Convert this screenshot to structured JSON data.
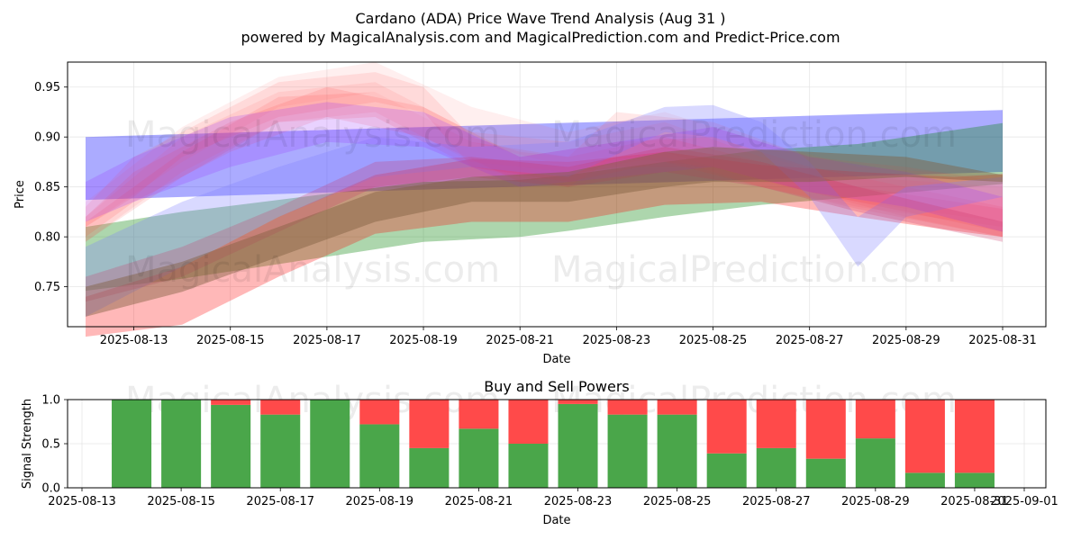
{
  "chart_data": [
    {
      "type": "area",
      "title": "Cardano (ADA) Price Wave Trend Analysis (Aug 31 )",
      "subtitle": "powered by MagicalAnalysis.com and MagicalPrediction.com and Predict-Price.com",
      "xlabel": "Date",
      "ylabel": "Price",
      "xlim": [
        "2025-08-12",
        "2025-08-31"
      ],
      "ylim": [
        0.71,
        0.975
      ],
      "x_ticks": [
        "2025-08-13",
        "2025-08-15",
        "2025-08-17",
        "2025-08-19",
        "2025-08-21",
        "2025-08-23",
        "2025-08-25",
        "2025-08-27",
        "2025-08-29",
        "2025-08-31"
      ],
      "y_ticks": [
        "0.75",
        "0.80",
        "0.85",
        "0.90",
        "0.95"
      ],
      "grid": true,
      "watermark": [
        "MagicalAnalysis.com",
        "MagicalPrediction.com"
      ],
      "bands": [
        {
          "color": "#0000ff",
          "opacity": 0.33,
          "x": [
            "2025-08-12",
            "2025-08-31"
          ],
          "upper": [
            0.9,
            0.927
          ],
          "lower": [
            0.837,
            0.865
          ]
        },
        {
          "color": "#008000",
          "opacity": 0.32,
          "x": [
            "2025-08-12",
            "2025-08-14",
            "2025-08-17",
            "2025-08-19",
            "2025-08-21",
            "2025-08-22",
            "2025-08-24",
            "2025-08-26",
            "2025-08-28",
            "2025-08-31"
          ],
          "upper": [
            0.81,
            0.825,
            0.843,
            0.855,
            0.857,
            0.862,
            0.875,
            0.887,
            0.893,
            0.914
          ],
          "lower": [
            0.746,
            0.758,
            0.78,
            0.795,
            0.8,
            0.806,
            0.82,
            0.832,
            0.84,
            0.853
          ]
        },
        {
          "color": "#ff0000",
          "opacity": 0.28,
          "x": [
            "2025-08-12",
            "2025-08-14",
            "2025-08-16",
            "2025-08-18",
            "2025-08-20",
            "2025-08-22",
            "2025-08-24",
            "2025-08-26",
            "2025-08-28",
            "2025-08-30",
            "2025-08-31"
          ],
          "upper": [
            0.74,
            0.77,
            0.82,
            0.862,
            0.878,
            0.875,
            0.885,
            0.872,
            0.865,
            0.86,
            0.863
          ],
          "lower": [
            0.7,
            0.712,
            0.76,
            0.803,
            0.815,
            0.815,
            0.832,
            0.835,
            0.82,
            0.806,
            0.8
          ]
        },
        {
          "color": "#ff5050",
          "opacity": 0.13,
          "x": [
            "2025-08-12",
            "2025-08-13",
            "2025-08-14",
            "2025-08-16",
            "2025-08-18",
            "2025-08-19",
            "2025-08-20",
            "2025-08-21",
            "2025-08-22",
            "2025-08-23",
            "2025-08-25",
            "2025-08-27",
            "2025-08-29",
            "2025-08-31"
          ],
          "upper": [
            0.83,
            0.88,
            0.905,
            0.955,
            0.965,
            0.95,
            0.9,
            0.885,
            0.88,
            0.925,
            0.915,
            0.88,
            0.87,
            0.855
          ],
          "lower": [
            0.81,
            0.84,
            0.88,
            0.92,
            0.935,
            0.925,
            0.87,
            0.86,
            0.85,
            0.88,
            0.87,
            0.845,
            0.82,
            0.8
          ]
        },
        {
          "color": "#ff5050",
          "opacity": 0.11,
          "x": [
            "2025-08-12",
            "2025-08-14",
            "2025-08-16",
            "2025-08-18",
            "2025-08-20",
            "2025-08-22",
            "2025-08-24",
            "2025-08-26",
            "2025-08-28",
            "2025-08-31"
          ],
          "upper": [
            0.82,
            0.9,
            0.945,
            0.955,
            0.905,
            0.895,
            0.915,
            0.88,
            0.86,
            0.85
          ],
          "lower": [
            0.795,
            0.865,
            0.915,
            0.925,
            0.875,
            0.865,
            0.88,
            0.85,
            0.83,
            0.81
          ]
        },
        {
          "color": "#ff4040",
          "opacity": 0.14,
          "x": [
            "2025-08-12",
            "2025-08-13",
            "2025-08-15",
            "2025-08-17",
            "2025-08-19",
            "2025-08-21",
            "2025-08-23",
            "2025-08-25",
            "2025-08-27",
            "2025-08-29",
            "2025-08-31"
          ],
          "upper": [
            0.82,
            0.865,
            0.915,
            0.95,
            0.93,
            0.88,
            0.895,
            0.9,
            0.87,
            0.85,
            0.83
          ],
          "lower": [
            0.8,
            0.835,
            0.885,
            0.92,
            0.9,
            0.855,
            0.87,
            0.87,
            0.845,
            0.825,
            0.805
          ]
        },
        {
          "color": "#ff6060",
          "opacity": 0.1,
          "x": [
            "2025-08-12",
            "2025-08-14",
            "2025-08-16",
            "2025-08-18",
            "2025-08-20",
            "2025-08-22",
            "2025-08-24",
            "2025-08-26",
            "2025-08-28",
            "2025-08-31"
          ],
          "upper": [
            0.835,
            0.91,
            0.96,
            0.975,
            0.93,
            0.905,
            0.925,
            0.895,
            0.87,
            0.86
          ],
          "lower": [
            0.81,
            0.875,
            0.93,
            0.945,
            0.895,
            0.87,
            0.885,
            0.855,
            0.835,
            0.815
          ]
        },
        {
          "color": "#ff3030",
          "opacity": 0.12,
          "x": [
            "2025-08-12",
            "2025-08-14",
            "2025-08-16",
            "2025-08-18",
            "2025-08-20",
            "2025-08-22",
            "2025-08-24",
            "2025-08-26",
            "2025-08-28",
            "2025-08-31"
          ],
          "upper": [
            0.815,
            0.885,
            0.94,
            0.945,
            0.895,
            0.88,
            0.9,
            0.875,
            0.85,
            0.828
          ],
          "lower": [
            0.795,
            0.86,
            0.915,
            0.92,
            0.87,
            0.855,
            0.875,
            0.85,
            0.828,
            0.8
          ]
        },
        {
          "color": "#8080ff",
          "opacity": 0.3,
          "x": [
            "2025-08-12",
            "2025-08-14",
            "2025-08-16",
            "2025-08-18",
            "2025-08-20",
            "2025-08-22",
            "2025-08-24",
            "2025-08-25",
            "2025-08-26",
            "2025-08-27",
            "2025-08-28",
            "2025-08-29",
            "2025-08-31"
          ],
          "upper": [
            0.79,
            0.835,
            0.87,
            0.9,
            0.89,
            0.895,
            0.93,
            0.932,
            0.915,
            0.875,
            0.82,
            0.85,
            0.86
          ],
          "lower": [
            0.72,
            0.77,
            0.82,
            0.86,
            0.87,
            0.86,
            0.905,
            0.9,
            0.885,
            0.84,
            0.77,
            0.82,
            0.84
          ]
        },
        {
          "color": "#9933ff",
          "opacity": 0.22,
          "x": [
            "2025-08-12",
            "2025-08-13",
            "2025-08-15",
            "2025-08-17",
            "2025-08-19",
            "2025-08-21",
            "2025-08-23",
            "2025-08-25",
            "2025-08-27",
            "2025-08-29",
            "2025-08-31"
          ],
          "upper": [
            0.855,
            0.88,
            0.92,
            0.935,
            0.925,
            0.88,
            0.895,
            0.91,
            0.88,
            0.865,
            0.84
          ],
          "lower": [
            0.815,
            0.835,
            0.87,
            0.895,
            0.89,
            0.85,
            0.86,
            0.87,
            0.845,
            0.83,
            0.805
          ]
        },
        {
          "color": "#cc3366",
          "opacity": 0.25,
          "x": [
            "2025-08-12",
            "2025-08-14",
            "2025-08-16",
            "2025-08-18",
            "2025-08-20",
            "2025-08-22",
            "2025-08-24",
            "2025-08-26",
            "2025-08-28",
            "2025-08-31"
          ],
          "upper": [
            0.76,
            0.79,
            0.83,
            0.875,
            0.88,
            0.87,
            0.89,
            0.875,
            0.85,
            0.815
          ],
          "lower": [
            0.735,
            0.76,
            0.805,
            0.85,
            0.86,
            0.85,
            0.865,
            0.85,
            0.825,
            0.795
          ]
        },
        {
          "color": "#806040",
          "opacity": 0.45,
          "x": [
            "2025-08-12",
            "2025-08-14",
            "2025-08-16",
            "2025-08-18",
            "2025-08-20",
            "2025-08-22",
            "2025-08-24",
            "2025-08-25",
            "2025-08-27",
            "2025-08-29",
            "2025-08-31"
          ],
          "upper": [
            0.75,
            0.775,
            0.81,
            0.845,
            0.86,
            0.865,
            0.885,
            0.89,
            0.885,
            0.88,
            0.862
          ],
          "lower": [
            0.72,
            0.745,
            0.78,
            0.815,
            0.835,
            0.835,
            0.85,
            0.855,
            0.855,
            0.86,
            0.855
          ]
        }
      ]
    },
    {
      "type": "bar",
      "title": "Buy and Sell Powers",
      "xlabel": "Date",
      "ylabel": "Signal Strength",
      "ylim": [
        0,
        1.0
      ],
      "xlim": [
        "2025-08-13",
        "2025-09-01"
      ],
      "x_ticks": [
        "2025-08-13",
        "2025-08-15",
        "2025-08-17",
        "2025-08-19",
        "2025-08-21",
        "2025-08-23",
        "2025-08-25",
        "2025-08-27",
        "2025-08-29",
        "2025-08-31",
        "2025-09-01"
      ],
      "y_ticks": [
        "0.0",
        "0.5",
        "1.0"
      ],
      "categories": [
        "2025-08-14",
        "2025-08-15",
        "2025-08-16",
        "2025-08-17",
        "2025-08-18",
        "2025-08-19",
        "2025-08-20",
        "2025-08-21",
        "2025-08-22",
        "2025-08-23",
        "2025-08-24",
        "2025-08-25",
        "2025-08-26",
        "2025-08-27",
        "2025-08-28",
        "2025-08-29",
        "2025-08-30",
        "2025-08-31"
      ],
      "series": [
        {
          "color": "#4aa64a",
          "values": [
            1.0,
            1.0,
            0.94,
            0.83,
            1.0,
            0.72,
            0.45,
            0.67,
            0.5,
            0.95,
            0.83,
            0.83,
            0.39,
            0.45,
            0.33,
            0.56,
            0.17,
            0.17
          ]
        },
        {
          "color": "#ff4a4a",
          "values": [
            0.0,
            0.0,
            0.06,
            0.17,
            0.0,
            0.28,
            0.55,
            0.33,
            0.5,
            0.05,
            0.17,
            0.17,
            0.61,
            0.55,
            0.67,
            0.44,
            0.83,
            0.83
          ]
        }
      ]
    }
  ]
}
